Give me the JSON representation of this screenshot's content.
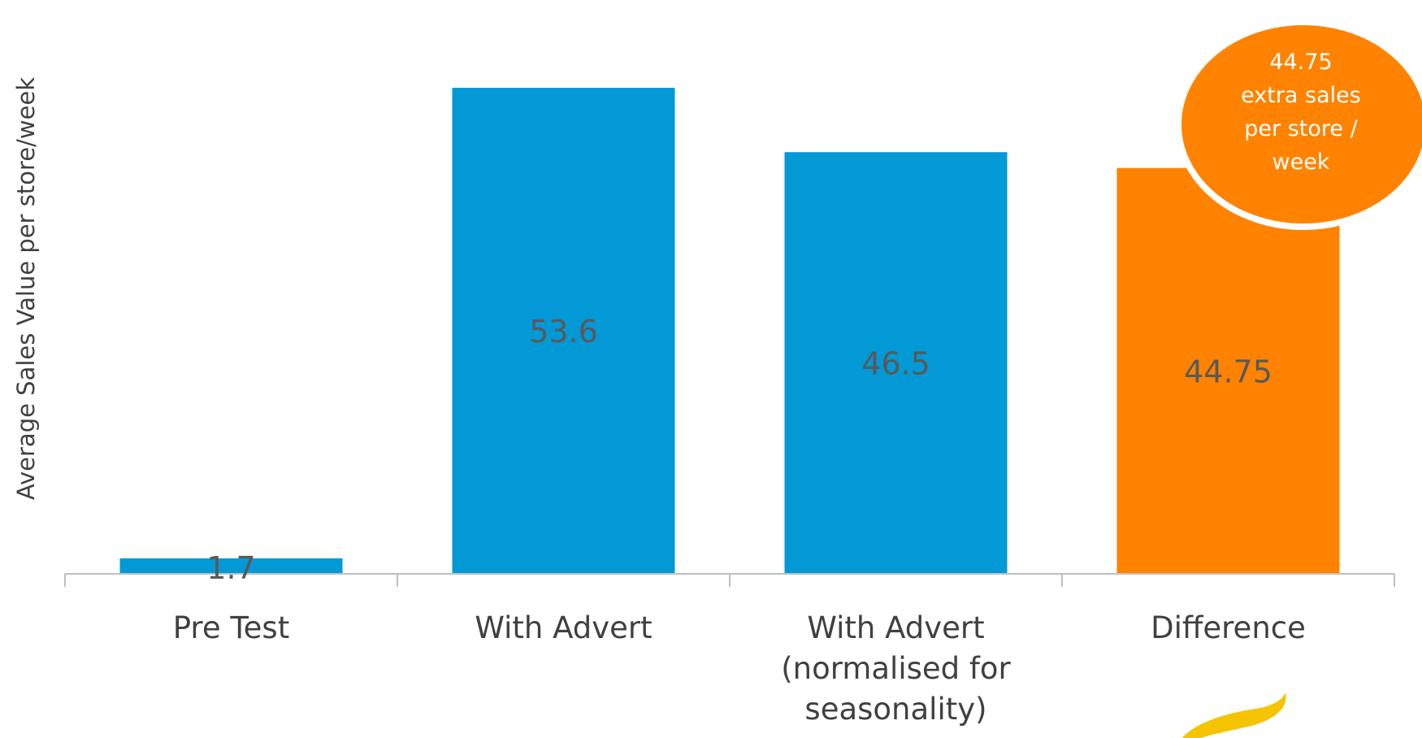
{
  "chart_data": {
    "type": "bar",
    "categories": [
      [
        "Pre Test"
      ],
      [
        "With Advert"
      ],
      [
        "With Advert",
        "(normalised for",
        "seasonality)"
      ],
      [
        "Difference"
      ]
    ],
    "values": [
      1.7,
      53.6,
      46.5,
      44.75
    ],
    "value_labels": [
      "1.7",
      "53.6",
      "46.5",
      "44.75"
    ],
    "bar_colors": [
      "#0399d6",
      "#0399d6",
      "#0399d6",
      "#ff8300"
    ],
    "title": "",
    "xlabel": "",
    "ylabel": "Average Sales Value per store/week",
    "ylim": [
      0,
      55
    ],
    "grid": false,
    "legend": "none",
    "callout": {
      "lines": [
        "44.75",
        "extra sales",
        "per store /",
        "week"
      ],
      "fill": "#ff8300",
      "outline": "#ffffff"
    },
    "colors": {
      "axis": "#bfbfbf",
      "value_text": "#595959",
      "category_text": "#404040"
    }
  },
  "decoration": {
    "logo_icon": "yellow-swoosh-logo",
    "logo_color": "#f5c400"
  }
}
